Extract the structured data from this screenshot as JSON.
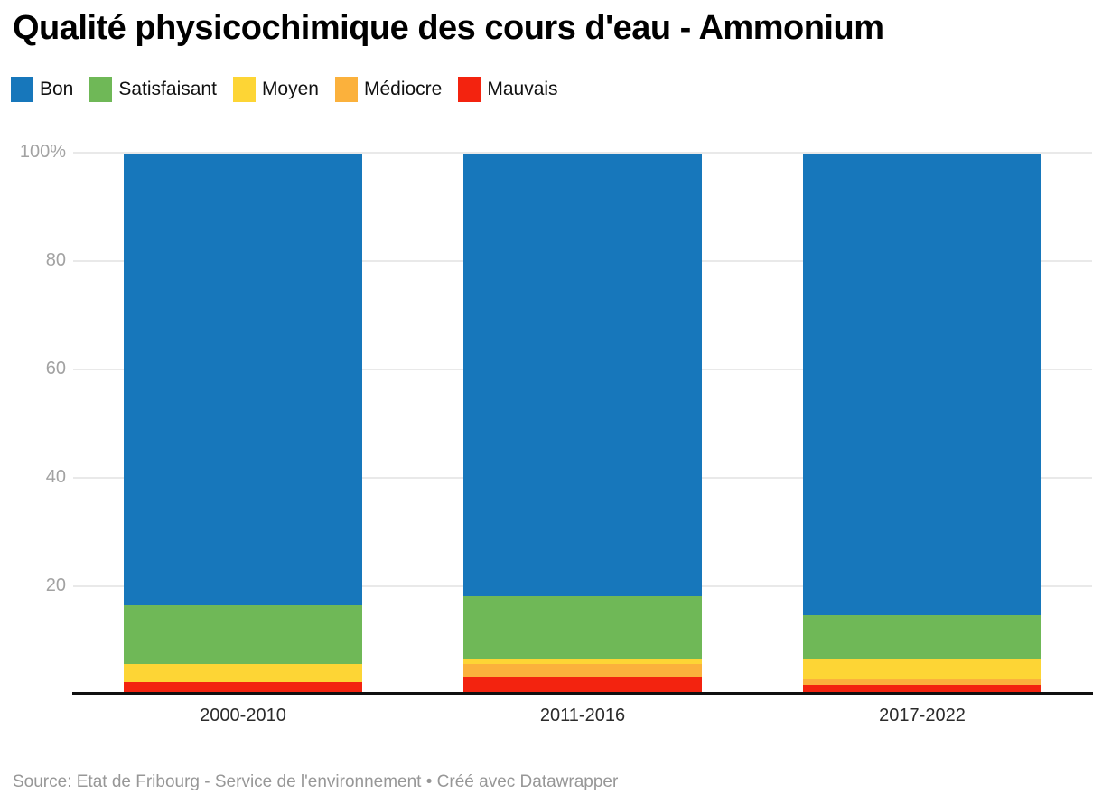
{
  "header": {
    "title": "Qualité physicochimique des cours d'eau - Ammonium"
  },
  "chart_data": {
    "type": "bar",
    "stacked": true,
    "unit": "percent",
    "title": "Qualité physicochimique des cours d'eau - Ammonium",
    "categories": [
      "2000-2010",
      "2011-2016",
      "2017-2022"
    ],
    "series": [
      {
        "name": "Bon",
        "color": "#1777bb",
        "values": [
          83.7,
          82.0,
          85.5
        ]
      },
      {
        "name": "Satisfaisant",
        "color": "#6fb857",
        "values": [
          10.8,
          11.5,
          8.2
        ]
      },
      {
        "name": "Moyen",
        "color": "#fdd535",
        "values": [
          3.3,
          1.0,
          3.7
        ]
      },
      {
        "name": "Médiocre",
        "color": "#fbb13c",
        "values": [
          0,
          2.4,
          0.9
        ]
      },
      {
        "name": "Mauvais",
        "color": "#f3230f",
        "values": [
          2.2,
          3.1,
          1.7
        ]
      }
    ],
    "ylim": [
      0,
      100
    ],
    "yticks": [
      "100%",
      "80",
      "60",
      "40",
      "20"
    ],
    "grid": true,
    "legend_position": "top",
    "xlabel": "",
    "ylabel": ""
  },
  "footer": {
    "source": "Source: Etat de Fribourg - Service de l'environnement • Créé avec Datawrapper"
  }
}
